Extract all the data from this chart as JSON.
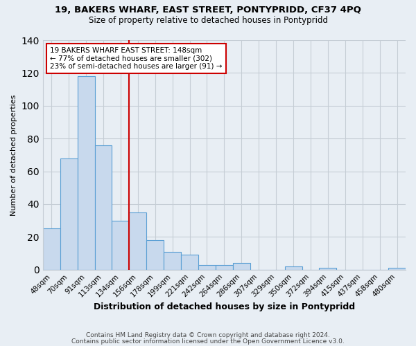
{
  "title1": "19, BAKERS WHARF, EAST STREET, PONTYPRIDD, CF37 4PQ",
  "title2": "Size of property relative to detached houses in Pontypridd",
  "xlabel": "Distribution of detached houses by size in Pontypridd",
  "ylabel": "Number of detached properties",
  "categories": [
    "48sqm",
    "70sqm",
    "91sqm",
    "113sqm",
    "134sqm",
    "156sqm",
    "178sqm",
    "199sqm",
    "221sqm",
    "242sqm",
    "264sqm",
    "286sqm",
    "307sqm",
    "329sqm",
    "350sqm",
    "372sqm",
    "394sqm",
    "415sqm",
    "437sqm",
    "458sqm",
    "480sqm"
  ],
  "values": [
    25,
    68,
    118,
    76,
    30,
    35,
    18,
    11,
    9,
    3,
    3,
    4,
    0,
    0,
    2,
    0,
    1,
    0,
    0,
    0,
    1
  ],
  "bar_color": "#c8d9ed",
  "bar_edge_color": "#5a9fd4",
  "vline_x": 4.5,
  "vline_color": "#cc0000",
  "annotation_box_edge": "#cc0000",
  "annotation_line1": "19 BAKERS WHARF EAST STREET: 148sqm",
  "annotation_line2": "← 77% of detached houses are smaller (302)",
  "annotation_line3": "23% of semi-detached houses are larger (91) →",
  "ylim": [
    0,
    140
  ],
  "footer1": "Contains HM Land Registry data © Crown copyright and database right 2024.",
  "footer2": "Contains public sector information licensed under the Open Government Licence v3.0.",
  "bg_color": "#e8eef4",
  "plot_bg_color": "#e8eef4",
  "grid_color": "#c5cdd5"
}
